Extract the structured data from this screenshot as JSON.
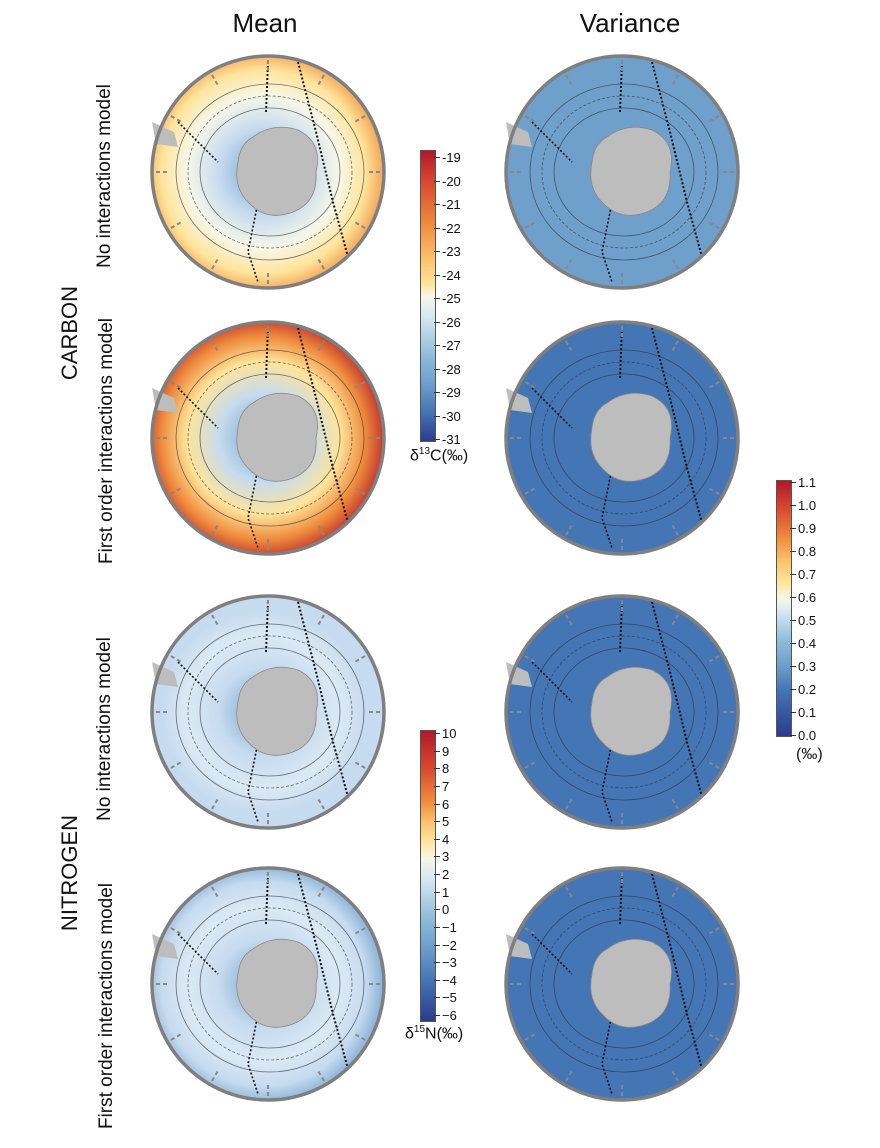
{
  "columns": {
    "left": "Mean",
    "right": "Variance"
  },
  "groups": [
    {
      "label": "CARBON",
      "rows": [
        "No interactions model",
        "First order interactions model"
      ]
    },
    {
      "label": "NITROGEN",
      "rows": [
        "No interactions model",
        "First order interactions model"
      ]
    }
  ],
  "colorbars": {
    "carbon": {
      "ticks": [
        "-19",
        "-20",
        "-21",
        "-22",
        "-23",
        "-24",
        "-25",
        "-26",
        "-27",
        "-28",
        "-29",
        "-30",
        "-31"
      ],
      "unit_symbol": "δ",
      "unit_sup": "13",
      "unit_rest": "C(‰)"
    },
    "nitrogen": {
      "ticks": [
        "10",
        "9",
        "8",
        "7",
        "6",
        "5",
        "4",
        "3",
        "2",
        "1",
        "0",
        "−1",
        "−2",
        "−3",
        "−4",
        "−5",
        "−6"
      ],
      "unit_symbol": "δ",
      "unit_sup": "15",
      "unit_rest": "N(‰)"
    },
    "variance": {
      "ticks": [
        "1.1",
        "1.0",
        "0.9",
        "0.8",
        "0.7",
        "0.6",
        "0.5",
        "0.4",
        "0.3",
        "0.2",
        "0.1",
        "0.0"
      ],
      "unit": "(‰)"
    }
  },
  "palette": {
    "red": "#b2182b",
    "orange": "#ef8a3c",
    "yellow": "#fee49a",
    "pale": "#f7f7e8",
    "lightblue": "#c6dbef",
    "midblue": "#6fa0cc",
    "blue": "#4475b4",
    "darkblue": "#2c3b8f",
    "land": "#bdbdbd",
    "ring": "#7f7f7f"
  }
}
